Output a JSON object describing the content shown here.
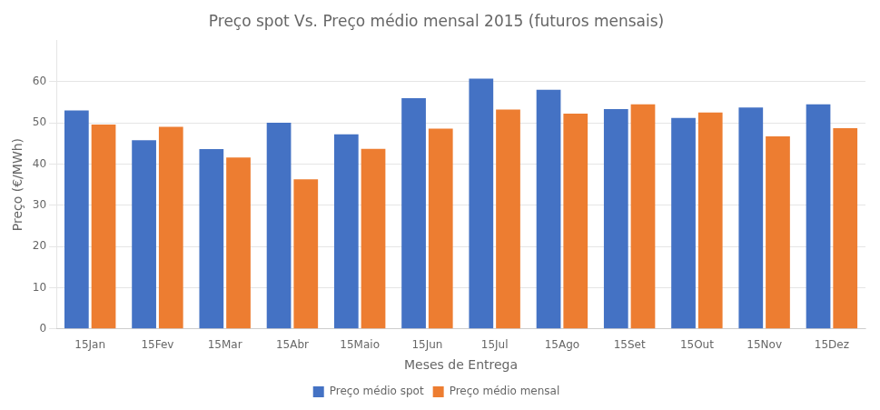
{
  "chart_data": {
    "type": "bar",
    "title": "Preço spot Vs. Preço médio mensal 2015 (futuros mensais)",
    "xlabel": "Meses de Entrega",
    "ylabel": "Preço (€/MWh)",
    "categories": [
      "15Jan",
      "15Fev",
      "15Mar",
      "15Abr",
      "15Maio",
      "15Jun",
      "15Jul",
      "15Ago",
      "15Set",
      "15Out",
      "15Nov",
      "15Dez"
    ],
    "series": [
      {
        "name": "Preço médio spot",
        "color": "#4472C4",
        "values": [
          53.0,
          45.8,
          43.6,
          50.0,
          47.2,
          56.0,
          60.7,
          58.0,
          53.3,
          51.2,
          53.7,
          54.5
        ]
      },
      {
        "name": "Preço médio mensal",
        "color": "#ED7D31",
        "values": [
          49.6,
          49.0,
          41.6,
          36.3,
          43.7,
          48.6,
          53.2,
          52.2,
          54.5,
          52.5,
          46.7,
          48.7
        ]
      }
    ],
    "ylim": [
      0,
      70
    ],
    "yticks": [
      0,
      10,
      20,
      30,
      40,
      50,
      60
    ],
    "grid": true,
    "legend": "bottom"
  }
}
